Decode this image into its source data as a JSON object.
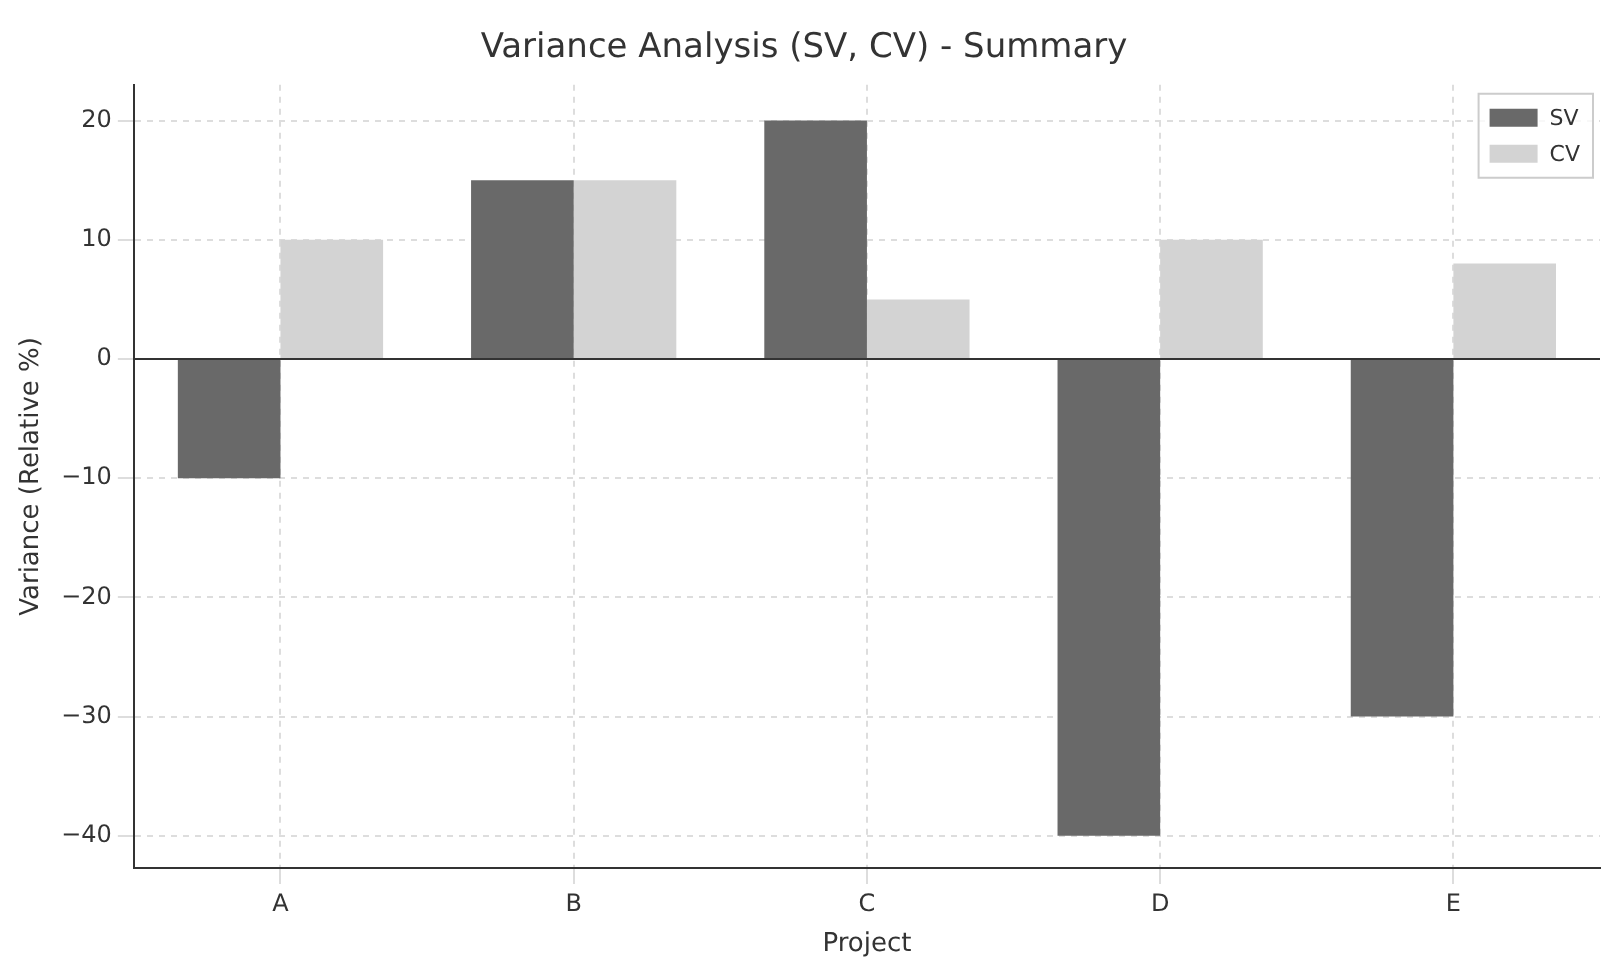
{
  "chart_data": {
    "type": "bar",
    "title": "Variance Analysis (SV, CV) - Summary",
    "xlabel": "Project",
    "ylabel": "Variance (Relative %)",
    "categories": [
      "A",
      "B",
      "C",
      "D",
      "E"
    ],
    "series": [
      {
        "name": "SV",
        "color": "#696969",
        "values": [
          -10,
          15,
          20,
          -40,
          -30
        ]
      },
      {
        "name": "CV",
        "color": "#d3d3d3",
        "values": [
          10,
          15,
          5,
          10,
          8
        ]
      }
    ],
    "ylim": [
      -42.7,
      23
    ],
    "yticks": [
      -40,
      -30,
      -20,
      -10,
      0,
      10,
      20
    ],
    "grid": true,
    "legend": "top right",
    "ref_lines": [
      {
        "axis": "y",
        "value": 0,
        "color": "#333333"
      }
    ]
  }
}
